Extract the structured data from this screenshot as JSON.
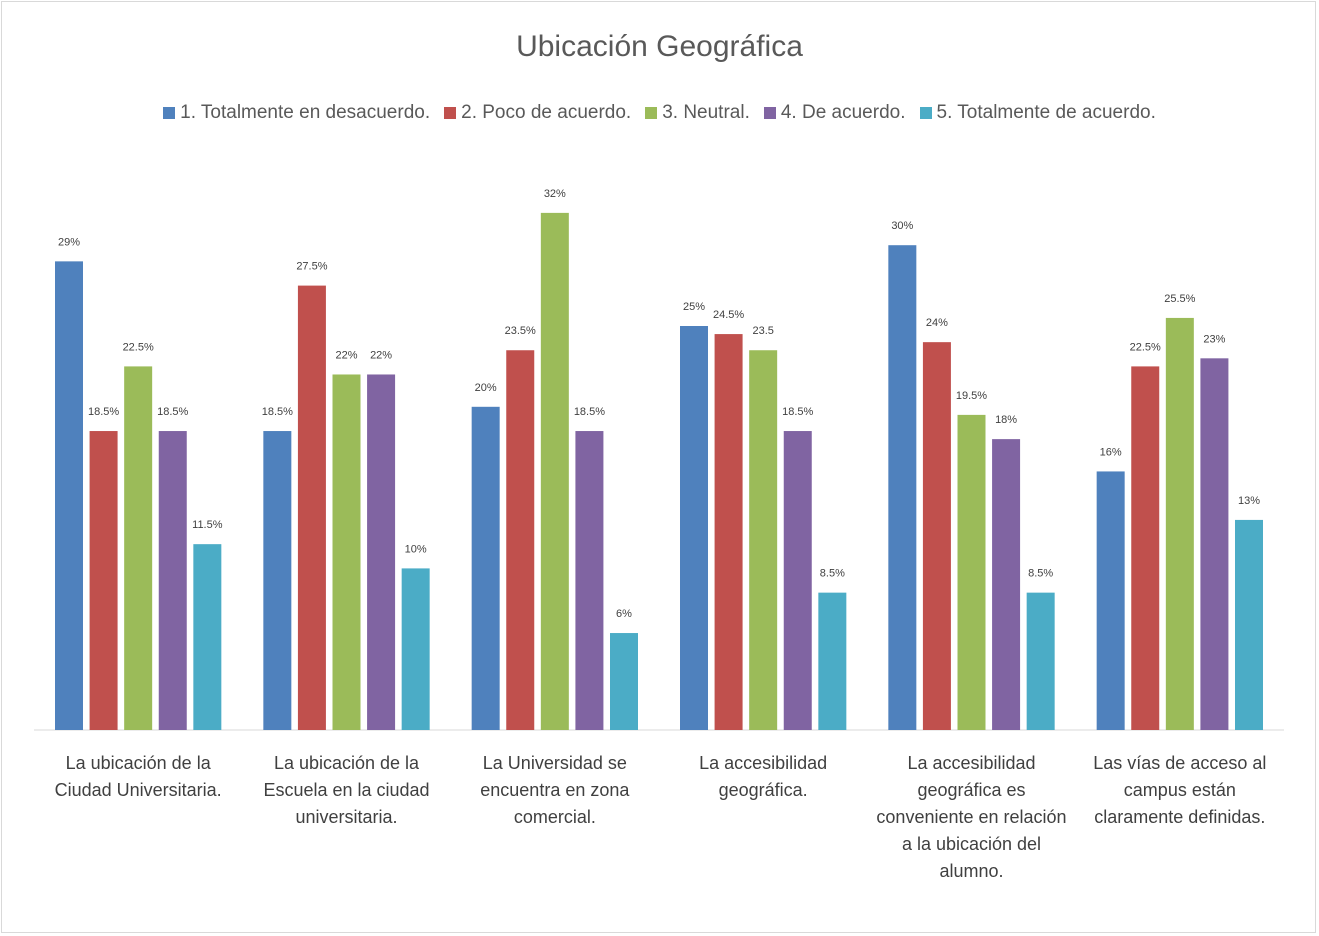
{
  "chart_data": {
    "type": "bar",
    "title": "Ubicación Geográfica",
    "categories": [
      "La ubicación de la Ciudad Universitaria.",
      "La ubicación de la Escuela en la ciudad universitaria.",
      "La Universidad se encuentra en zona comercial.",
      "La accesibilidad geográfica.",
      "La accesibilidad geográfica es conveniente en relación a la ubicación del alumno.",
      "Las vías de acceso al campus están claramente definidas."
    ],
    "series": [
      {
        "name": "1. Totalmente en desacuerdo.",
        "color": "#4f81bd",
        "values": [
          29,
          18.5,
          20,
          25,
          30,
          16
        ],
        "value_labels": [
          "29%",
          "18.5%",
          "20%",
          "25%",
          "30%",
          "16%"
        ]
      },
      {
        "name": "2. Poco de acuerdo.",
        "color": "#c0504d",
        "values": [
          18.5,
          27.5,
          23.5,
          24.5,
          24,
          22.5
        ],
        "value_labels": [
          "18.5%",
          "27.5%",
          "23.5%",
          "24.5%",
          "24%",
          "22.5%"
        ]
      },
      {
        "name": "3. Neutral.",
        "color": "#9bbb59",
        "values": [
          22.5,
          22,
          32,
          23.5,
          19.5,
          25.5
        ],
        "value_labels": [
          "22.5%",
          "22%",
          "32%",
          "23.5",
          "19.5%",
          "25.5%"
        ]
      },
      {
        "name": "4. De acuerdo.",
        "color": "#8064a2",
        "values": [
          18.5,
          22,
          18.5,
          18.5,
          18,
          23
        ],
        "value_labels": [
          "18.5%",
          "22%",
          "18.5%",
          "18.5%",
          "18%",
          "23%"
        ]
      },
      {
        "name": "5. Totalmente de acuerdo.",
        "color": "#4bacc6",
        "values": [
          11.5,
          10,
          6,
          8.5,
          8.5,
          13
        ],
        "value_labels": [
          "11.5%",
          "10%",
          "6%",
          "8.5%",
          "8.5%",
          "13%"
        ]
      }
    ],
    "ylim": [
      0,
      35
    ],
    "legend": "top"
  }
}
